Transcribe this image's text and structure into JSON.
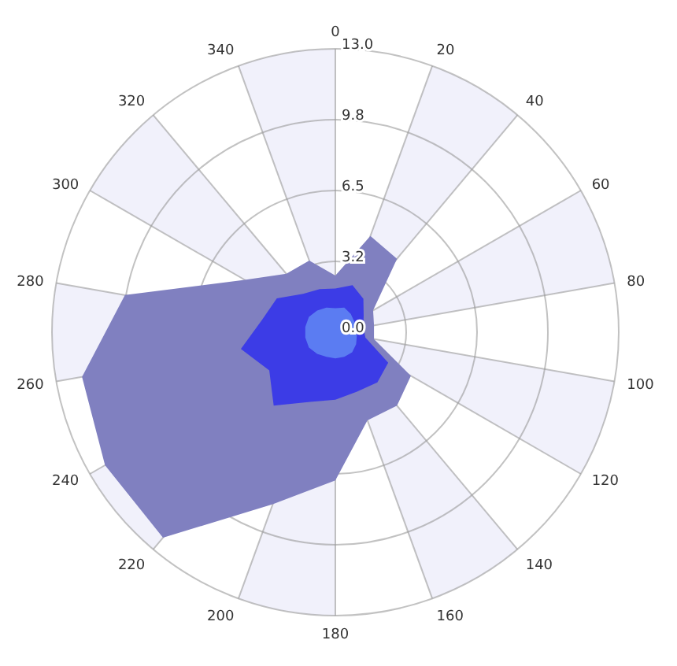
{
  "chart_data": {
    "type": "radar",
    "categories": [
      "0",
      "20",
      "40",
      "60",
      "80",
      "100",
      "120",
      "140",
      "160",
      "180",
      "200",
      "220",
      "240",
      "260",
      "280",
      "300",
      "320",
      "340"
    ],
    "series": [
      {
        "color": "#8080c0",
        "values": [
          2.6,
          4.7,
          4.4,
          2.0,
          1.8,
          1.8,
          4.0,
          4.4,
          4.3,
          6.8,
          8.4,
          12.3,
          12.2,
          11.8,
          9.8,
          4.8,
          3.5,
          3.5
        ]
      },
      {
        "color": "#3c3ce6",
        "values": [
          2.0,
          2.3,
          2.0,
          1.5,
          1.3,
          1.4,
          2.8,
          3.0,
          2.9,
          3.1,
          3.4,
          4.4,
          3.5,
          4.4,
          3.4,
          3.1,
          2.3,
          2.1
        ]
      },
      {
        "color": "#5b7cf2",
        "values": [
          1.1,
          1.2,
          1.1,
          1.0,
          1.0,
          1.0,
          1.1,
          1.2,
          1.2,
          1.2,
          1.2,
          1.3,
          1.4,
          1.4,
          1.4,
          1.4,
          1.3,
          1.2
        ]
      }
    ],
    "ylim": [
      0,
      13
    ],
    "yticks": [
      {
        "value": 0,
        "label": "0.0"
      },
      {
        "value": 3.25,
        "label": "3.2"
      },
      {
        "value": 6.5,
        "label": "6.5"
      },
      {
        "value": 9.75,
        "label": "9.8"
      },
      {
        "value": 13,
        "label": "13.0"
      }
    ],
    "grid": true
  }
}
